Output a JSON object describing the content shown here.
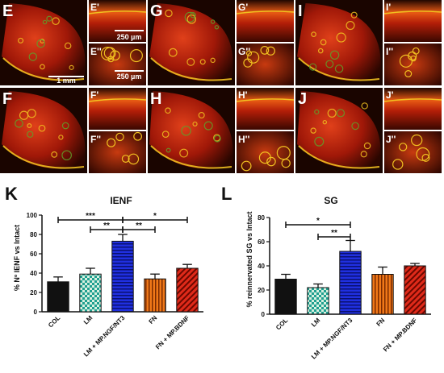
{
  "micrographs": {
    "panels": [
      {
        "id": "E",
        "main": "E",
        "top": "E'",
        "bottom": "E''",
        "scale_top": "250 µm",
        "scale_bottom": "250 µm",
        "scale_main": "1 mm"
      },
      {
        "id": "F",
        "main": "F",
        "top": "F'",
        "bottom": "F''"
      },
      {
        "id": "G",
        "main": "G",
        "top": "G'",
        "bottom": "G''"
      },
      {
        "id": "H",
        "main": "H",
        "top": "H'",
        "bottom": "H''"
      },
      {
        "id": "I",
        "main": "I",
        "top": "I'",
        "bottom": "I''"
      },
      {
        "id": "J",
        "main": "J",
        "top": "J'",
        "bottom": "J''"
      }
    ],
    "colors": {
      "background": "#1a0500",
      "tissue": "#c81e08",
      "fiber": "#f0c020",
      "green": "#5fa02a"
    }
  },
  "chart_data": [
    {
      "panel_letter": "K",
      "type": "bar",
      "title": "IENF",
      "ylabel": "% Nº IENF vs Intact",
      "ylim": [
        0,
        100
      ],
      "yticks": [
        "0",
        "20",
        "40",
        "60",
        "80",
        "100"
      ],
      "categories": [
        "COL",
        "LM",
        "LM + MP.NGF/NT3",
        "FN",
        "FN + MP.BDNF"
      ],
      "values": [
        31,
        39,
        73,
        34,
        45
      ],
      "errors": [
        5,
        6,
        7,
        5,
        4
      ],
      "bar_styles": [
        "solid-black",
        "check-green",
        "hstripe-blue",
        "vstripe-orange",
        "diagstripe-red"
      ],
      "significance": [
        {
          "from": 0,
          "to": 2,
          "label": "***",
          "y": 95
        },
        {
          "from": 2,
          "to": 4,
          "label": "*",
          "y": 95
        },
        {
          "from": 1,
          "to": 2,
          "label": "**",
          "y": 85
        },
        {
          "from": 2,
          "to": 3,
          "label": "**",
          "y": 85
        }
      ]
    },
    {
      "panel_letter": "L",
      "type": "bar",
      "title": "SG",
      "ylabel": "% reinnervated SG vs Intact",
      "ylim": [
        0,
        80
      ],
      "yticks": [
        "0",
        "20",
        "40",
        "60",
        "80"
      ],
      "categories": [
        "COL",
        "LM",
        "LM + MP.NGF/NT3",
        "FN",
        "FN + MP.BDNF"
      ],
      "values": [
        29,
        22,
        52,
        33,
        40
      ],
      "errors": [
        4,
        3,
        9,
        6,
        2
      ],
      "bar_styles": [
        "solid-black",
        "check-green",
        "hstripe-blue",
        "vstripe-orange",
        "diagstripe-red"
      ],
      "significance": [
        {
          "from": 0,
          "to": 2,
          "label": "*",
          "y": 74
        },
        {
          "from": 1,
          "to": 2,
          "label": "**",
          "y": 64
        }
      ]
    }
  ]
}
